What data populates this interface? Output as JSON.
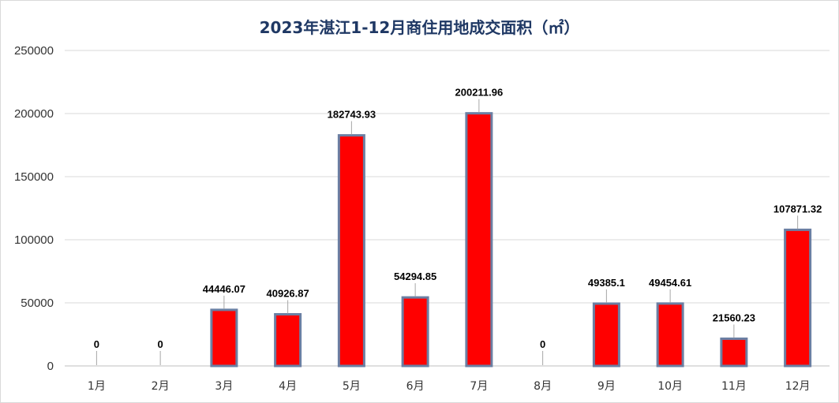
{
  "chart_data": {
    "type": "bar",
    "title": "2023年湛江1-12月商住用地成交面积（㎡）",
    "categories": [
      "1月",
      "2月",
      "3月",
      "4月",
      "5月",
      "6月",
      "7月",
      "8月",
      "9月",
      "10月",
      "11月",
      "12月"
    ],
    "values": [
      0,
      0,
      44446.07,
      40926.87,
      182743.93,
      54294.85,
      200211.96,
      0,
      49385.1,
      49454.61,
      21560.23,
      107871.32
    ],
    "data_labels": [
      "0",
      "0",
      "44446.07",
      "40926.87",
      "182743.93",
      "54294.85",
      "200211.96",
      "0",
      "49385.1",
      "49454.61",
      "21560.23",
      "107871.32"
    ],
    "yticks": [
      "0",
      "50000",
      "100000",
      "150000",
      "200000",
      "250000"
    ],
    "ylim": [
      0,
      250000
    ],
    "grid": true,
    "legend": "none",
    "bar_color": "#ff0000",
    "bar_edge_color": "#6b7fa3"
  }
}
